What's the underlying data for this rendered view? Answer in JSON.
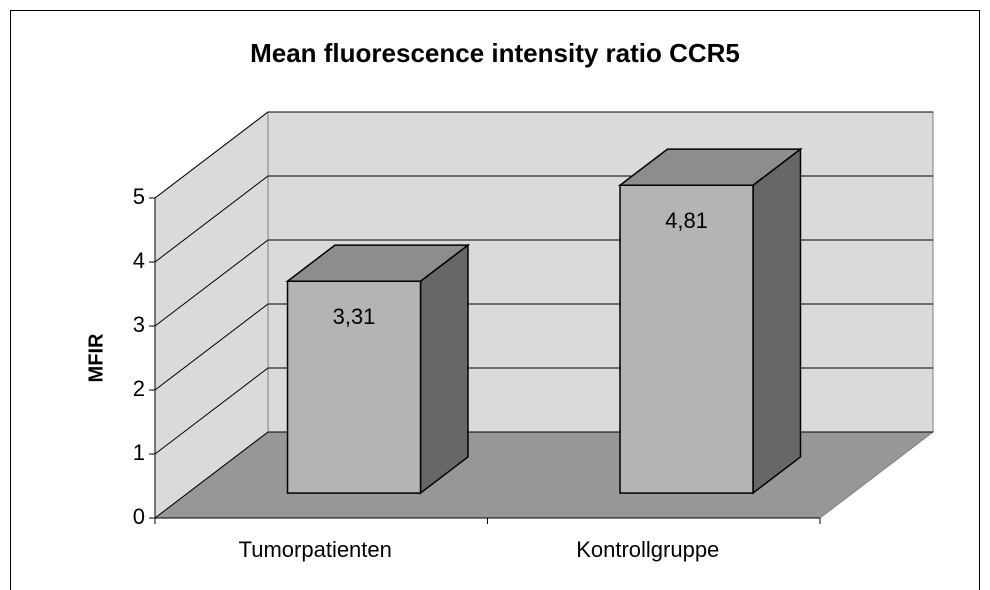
{
  "chart_data": {
    "type": "bar3d",
    "title": "Mean fluorescence intensity ratio CCR5",
    "y_label": "MFIR",
    "categories": [
      "Tumorpatienten",
      "Kontrollgruppe"
    ],
    "values": [
      3.31,
      4.81
    ],
    "value_labels": [
      "3,31",
      "4,81"
    ],
    "color": "#b4b4b4",
    "ylim": [
      0,
      5
    ],
    "yticks": [
      0,
      1,
      2,
      3,
      4,
      5
    ],
    "grid": true
  }
}
